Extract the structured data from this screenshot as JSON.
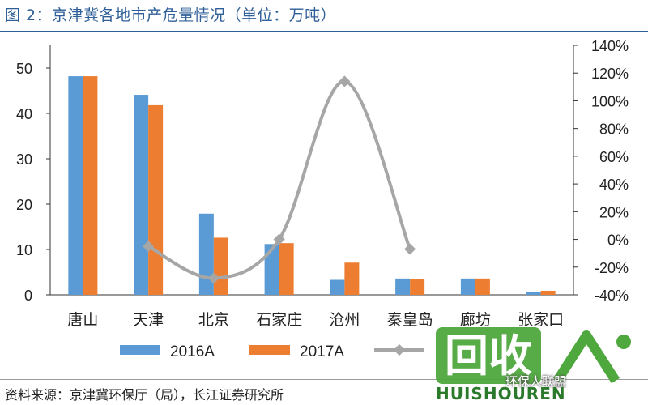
{
  "header": {
    "title": "图 2：京津冀各地市产危量情况（单位：万吨）"
  },
  "footer": {
    "source": "资料来源：京津冀环保厅（局），长江证券研究所"
  },
  "watermark": {
    "logo_text": "回收",
    "caption": "环保人联盟",
    "brand": "HUISHOUREN"
  },
  "chart_data": {
    "type": "bar",
    "categories": [
      "唐山",
      "天津",
      "北京",
      "石家庄",
      "沧州",
      "秦皇岛",
      "廊坊",
      "张家口"
    ],
    "series": [
      {
        "name": "2016A",
        "type": "bar",
        "axis": "left",
        "color": "#5b9bd5",
        "values": [
          48.2,
          44.1,
          17.9,
          11.2,
          3.3,
          3.6,
          3.6,
          0.7
        ]
      },
      {
        "name": "2017A",
        "type": "bar",
        "axis": "left",
        "color": "#ed7d31",
        "values": [
          48.2,
          41.8,
          12.6,
          11.4,
          7.1,
          3.4,
          3.6,
          0.9
        ]
      },
      {
        "type": "line",
        "axis": "right",
        "color": "#a6a6a6",
        "points": [
          [
            1,
            -5
          ],
          [
            2,
            -28
          ],
          [
            3,
            0
          ],
          [
            4,
            114
          ],
          [
            5,
            -7
          ]
        ]
      }
    ],
    "left_axis": {
      "min": 0,
      "max": 55,
      "ticks": [
        0,
        10,
        20,
        30,
        40,
        50
      ]
    },
    "right_axis": {
      "min": -40,
      "max": 140,
      "ticks": [
        -40,
        -20,
        0,
        20,
        40,
        60,
        80,
        100,
        120,
        140
      ],
      "tick_labels": [
        "-40%",
        "-20%",
        "0%",
        "20%",
        "40%",
        "60%",
        "80%",
        "100%",
        "120%",
        "140%"
      ]
    },
    "legend": {
      "position": "bottom",
      "entries": [
        "2016A",
        "2017A",
        ""
      ]
    },
    "grid": false
  }
}
